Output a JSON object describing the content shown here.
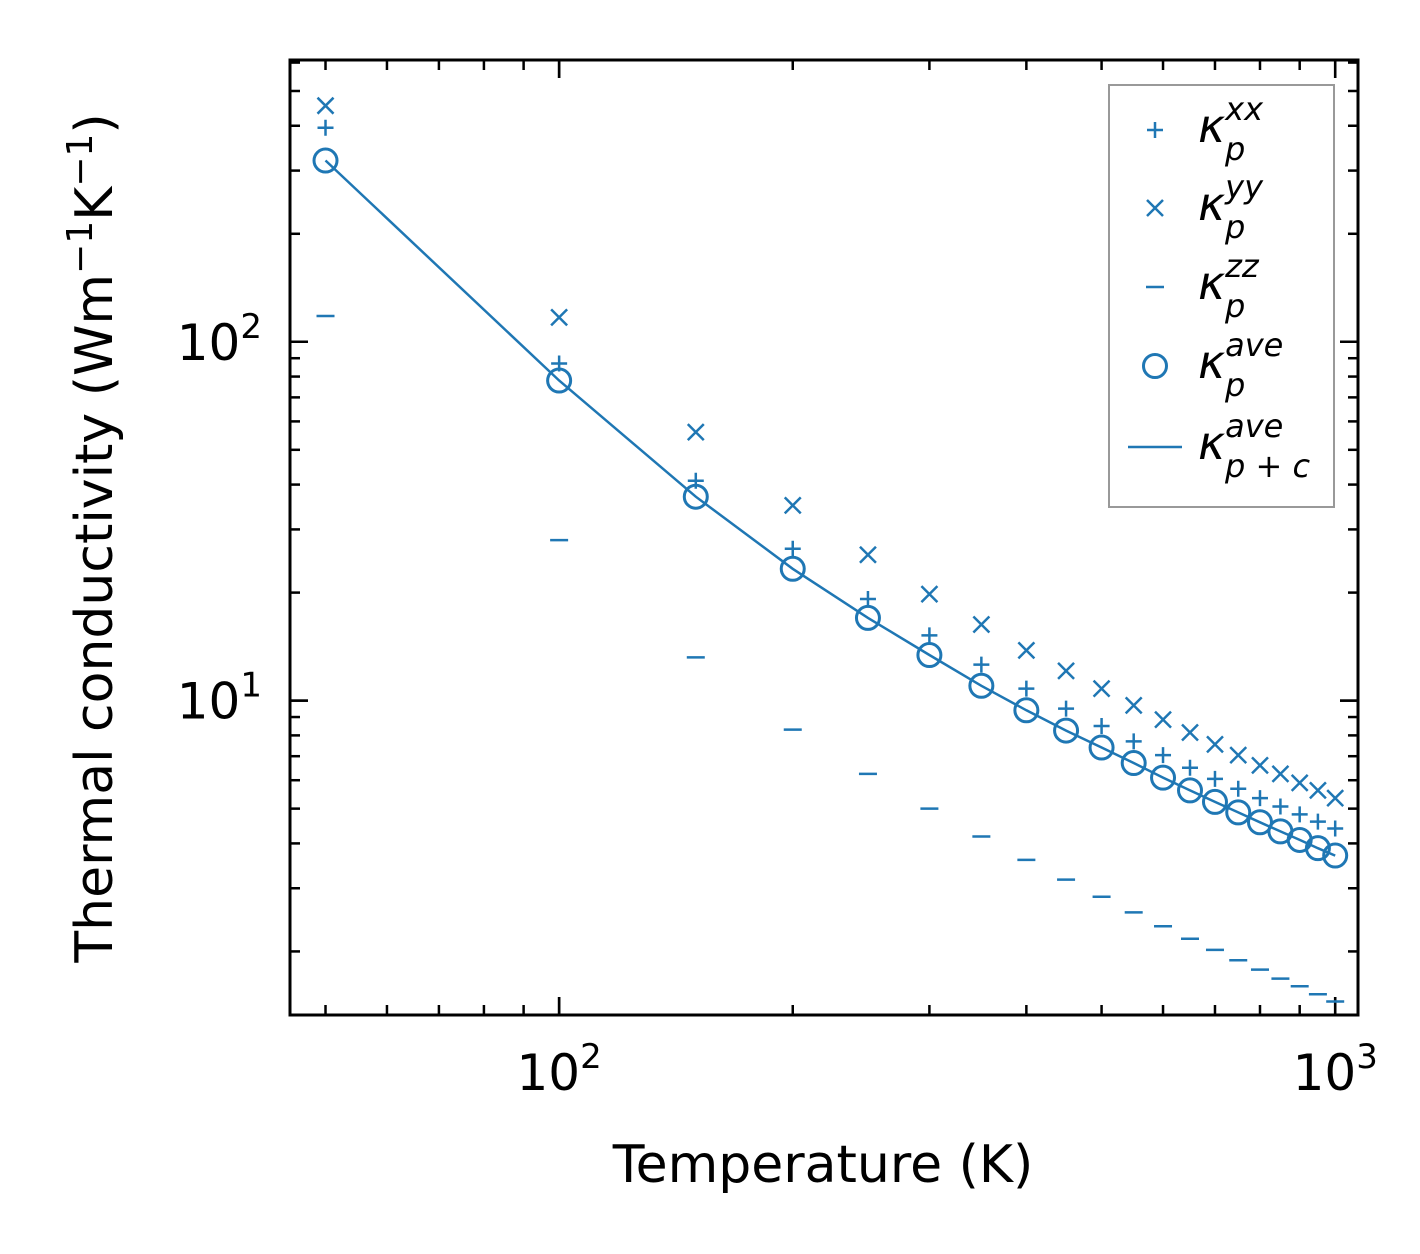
{
  "chart_data": {
    "type": "scatter",
    "title": "",
    "xlabel": "Temperature (K)",
    "ylabel": "Thermal conductivity (Wm",
    "ylabel_parts": [
      "Thermal conductivity (Wm",
      "−1",
      "K",
      "−1",
      ")"
    ],
    "xscale": "log",
    "yscale": "log",
    "xlim": [
      45,
      1070
    ],
    "ylim": [
      1.33,
      610
    ],
    "grid": false,
    "legend_position": "top-right",
    "x_ticks": [
      {
        "base": "10",
        "exp": "2",
        "value": 100
      },
      {
        "base": "10",
        "exp": "3",
        "value": 1000
      }
    ],
    "y_ticks": [
      {
        "base": "10",
        "exp": "1",
        "value": 10
      },
      {
        "base": "10",
        "exp": "2",
        "value": 100
      }
    ],
    "color": "#1f77b4",
    "x": [
      50,
      100,
      150,
      200,
      250,
      300,
      350,
      400,
      450,
      500,
      550,
      600,
      650,
      700,
      750,
      800,
      850,
      900,
      950,
      1000
    ],
    "series": [
      {
        "name": "κ_p^xx",
        "sym": "κ",
        "sub": "p",
        "sup": "xx",
        "marker": "plus",
        "values": [
          395,
          87,
          41,
          26.5,
          19.2,
          15.2,
          12.6,
          10.8,
          9.5,
          8.5,
          7.7,
          7.05,
          6.5,
          6.05,
          5.68,
          5.35,
          5.07,
          4.82,
          4.6,
          4.4
        ]
      },
      {
        "name": "κ_p^yy",
        "sym": "κ",
        "sub": "p",
        "sup": "yy",
        "marker": "x",
        "values": [
          455,
          117,
          56,
          35,
          25.5,
          19.8,
          16.3,
          13.8,
          12.1,
          10.8,
          9.7,
          8.85,
          8.15,
          7.55,
          7.05,
          6.6,
          6.25,
          5.9,
          5.62,
          5.35
        ]
      },
      {
        "name": "κ_p^zz",
        "sym": "κ",
        "sub": "p",
        "sup": "zz",
        "marker": "dash",
        "values": [
          118,
          28,
          13.2,
          8.3,
          6.25,
          5.0,
          4.18,
          3.6,
          3.17,
          2.84,
          2.57,
          2.35,
          2.17,
          2.02,
          1.89,
          1.78,
          1.68,
          1.6,
          1.52,
          1.45
        ]
      },
      {
        "name": "κ_p^ave",
        "sym": "κ",
        "sub": "p",
        "sup": "ave",
        "marker": "circle",
        "values": [
          320,
          78,
          37,
          23.3,
          17.0,
          13.4,
          11.0,
          9.4,
          8.25,
          7.4,
          6.7,
          6.1,
          5.62,
          5.22,
          4.88,
          4.58,
          4.32,
          4.09,
          3.88,
          3.7
        ]
      },
      {
        "name": "κ_p+c^ave",
        "sym": "κ",
        "sub": "p + c",
        "sup": "ave",
        "marker": "line",
        "values": [
          320,
          78,
          37,
          23.3,
          17.0,
          13.4,
          11.0,
          9.4,
          8.25,
          7.4,
          6.7,
          6.1,
          5.62,
          5.22,
          4.88,
          4.58,
          4.32,
          4.09,
          3.88,
          3.7
        ]
      }
    ]
  }
}
